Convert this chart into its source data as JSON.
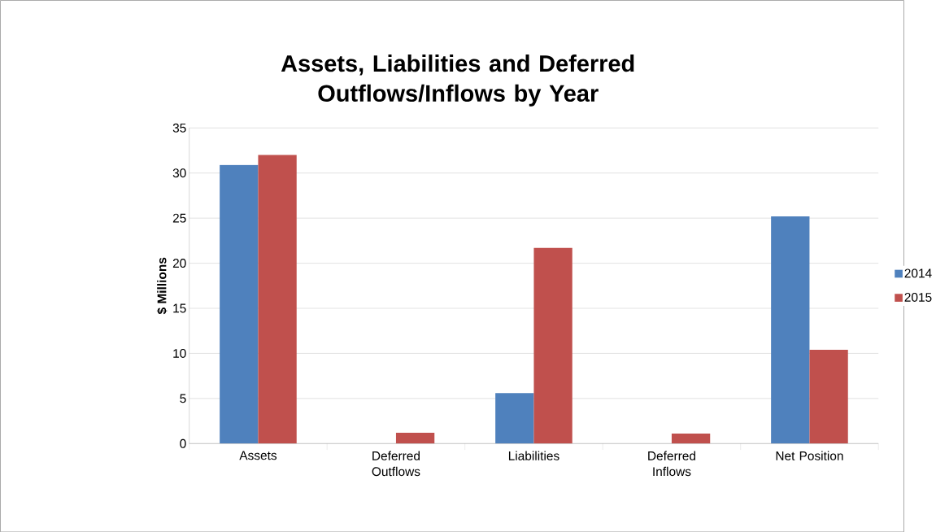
{
  "chart_data": {
    "type": "bar",
    "title": "Assets, Liabilities and Deferred Outflows/Inflows by Year",
    "ylabel": "$ Millions",
    "categories": [
      "Assets",
      "Deferred Outflows",
      "Liabilities",
      "Deferred Inflows",
      "Net Position"
    ],
    "series": [
      {
        "name": "2014",
        "color": "#4f81bd",
        "values": [
          30.9,
          0,
          5.6,
          0,
          25.2
        ]
      },
      {
        "name": "2015",
        "color": "#c0504d",
        "values": [
          32,
          1.2,
          21.7,
          1.1,
          10.4
        ]
      }
    ],
    "ylim": [
      0,
      35
    ],
    "yticks": [
      0,
      5,
      10,
      15,
      20,
      25,
      30,
      35
    ],
    "grid": "y",
    "legend": "right"
  }
}
